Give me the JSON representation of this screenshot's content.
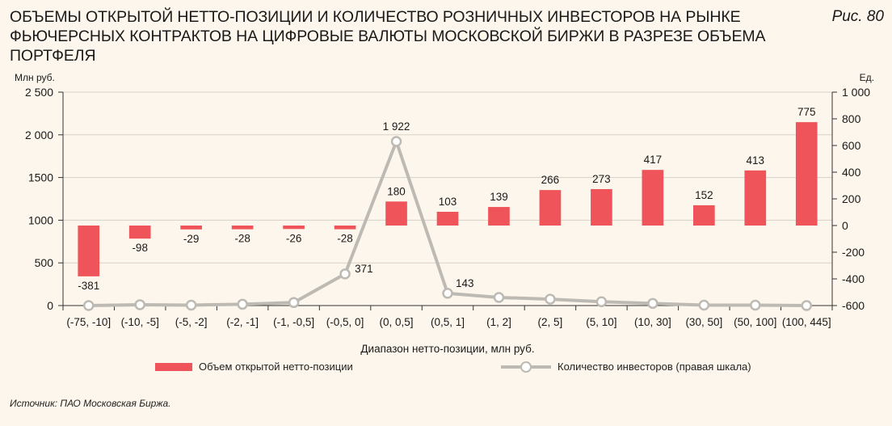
{
  "header": {
    "title": "Объемы открытой нетто-позиции и количество розничных инвесторов на рынке фьючерсных контрактов на цифровые валюты Московской биржи в разрезе объема портфеля",
    "figure_label": "Рис. 80"
  },
  "chart_data": {
    "type": "bar",
    "categories": [
      "(-75, -10]",
      "(-10, -5]",
      "(-5, -2]",
      "(-2, -1]",
      "(-1, -0,5]",
      "(-0,5, 0]",
      "(0, 0,5]",
      "(0,5, 1]",
      "(1, 2]",
      "(2, 5]",
      "(5, 10]",
      "(10, 30]",
      "(30, 50]",
      "(50, 100]",
      "(100, 445]"
    ],
    "xlabel": "Диапазон нетто-позиции, млн руб.",
    "ylabel_left": "Млн руб.",
    "ylabel_right": "Ед.",
    "ylim_left": [
      0,
      2500
    ],
    "yticks_left": [
      "0",
      "500",
      "1000",
      "1500",
      "2 000",
      "2 500"
    ],
    "ylim_right": [
      -600,
      1000
    ],
    "yticks_right": [
      "-600",
      "-400",
      "-200",
      "0",
      "200",
      "400",
      "600",
      "800",
      "1 000"
    ],
    "series": [
      {
        "name": "Объем открытой нетто-позиции",
        "kind": "bar",
        "axis": "right",
        "color": "#ee5459",
        "values": [
          -381,
          -98,
          -29,
          -28,
          -26,
          -28,
          180,
          103,
          139,
          266,
          273,
          417,
          152,
          413,
          775
        ],
        "labels": [
          "-381",
          "-98",
          "-29",
          "-28",
          "-26",
          "-28",
          "180",
          "103",
          "139",
          "266",
          "273",
          "417",
          "152",
          "413",
          "775"
        ]
      },
      {
        "name": "Количество инвесторов (правая шкала)",
        "kind": "line",
        "axis": "left",
        "color": "#bdbab4",
        "values": [
          0,
          10,
          5,
          15,
          35,
          371,
          1922,
          143,
          95,
          75,
          45,
          25,
          5,
          5,
          0
        ],
        "labels": [
          "",
          "",
          "",
          "",
          "",
          "371",
          "1 922",
          "143",
          "",
          "",
          "",
          "",
          "",
          "",
          ""
        ]
      }
    ],
    "grid": true,
    "legend": "bottom"
  },
  "source": "Источник: ПАО Московская Биржа."
}
